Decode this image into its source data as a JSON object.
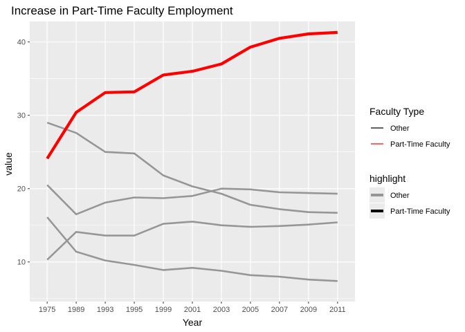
{
  "chart_data": {
    "type": "line",
    "title": "Increase in Part-Time Faculty Employment",
    "xlabel": "Year",
    "ylabel": "value",
    "categories": [
      "1975",
      "1989",
      "1993",
      "1995",
      "1999",
      "2001",
      "2003",
      "2005",
      "2007",
      "2009",
      "2011"
    ],
    "yticks": [
      10,
      20,
      30,
      40
    ],
    "ylim": [
      4.6,
      42.8
    ],
    "grid": true,
    "panel_color": "#ebebeb",
    "series": [
      {
        "group": "Part-Time Faculty",
        "color": "#ff0000",
        "values": [
          24.1,
          30.4,
          33.1,
          33.2,
          35.5,
          36.0,
          37.0,
          39.3,
          40.5,
          41.1,
          41.3
        ]
      },
      {
        "group": "Other",
        "color": "#969696",
        "values": [
          29.0,
          27.6,
          25.0,
          24.8,
          21.8,
          20.3,
          19.3,
          17.8,
          17.2,
          16.8,
          16.7
        ]
      },
      {
        "group": "Other",
        "color": "#969696",
        "values": [
          20.5,
          16.5,
          18.1,
          18.8,
          18.7,
          19.0,
          20.0,
          19.9,
          19.5,
          19.4,
          19.3
        ]
      },
      {
        "group": "Other",
        "color": "#969696",
        "values": [
          10.3,
          14.1,
          13.6,
          13.6,
          15.2,
          15.5,
          15.0,
          14.8,
          14.9,
          15.1,
          15.4
        ]
      },
      {
        "group": "Other",
        "color": "#969696",
        "values": [
          16.1,
          11.4,
          10.2,
          9.6,
          8.9,
          9.2,
          8.8,
          8.2,
          8.0,
          7.6,
          7.4
        ]
      }
    ],
    "legend_position": "right",
    "legends": [
      {
        "title": "Faculty Type",
        "entries": [
          {
            "label": "Other",
            "color": "#000000"
          },
          {
            "label": "Part-Time Faculty",
            "color": "#ff0000"
          }
        ]
      },
      {
        "title": "highlight",
        "entries": [
          {
            "label": "Other",
            "color": "#969696"
          },
          {
            "label": "Part-Time Faculty",
            "color": "#000000"
          }
        ]
      }
    ]
  }
}
